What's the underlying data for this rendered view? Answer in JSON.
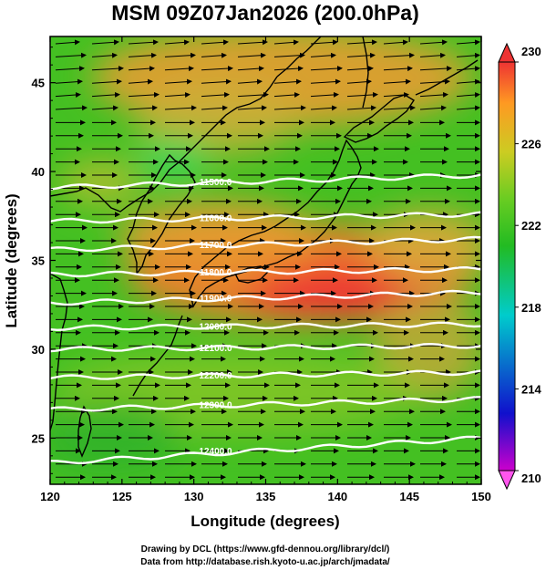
{
  "title": "MSM 09Z07Jan2026 (200.0hPa)",
  "xlabel": "Longitude (degrees)",
  "ylabel": "Latitude  (degrees)",
  "credits": [
    "Drawing by DCL (https://www.gfd-dennou.org/library/dcl/)",
    "Data from http://database.rish.kyoto-u.ac.jp/arch/jmadata/"
  ],
  "chart_data": {
    "type": "heatmap",
    "xlim": [
      120,
      150
    ],
    "ylim": [
      22.4,
      47.6
    ],
    "x_ticks": [
      "120",
      "125",
      "130",
      "135",
      "140",
      "145",
      "150"
    ],
    "x_tick_values": [
      120,
      125,
      130,
      135,
      140,
      145,
      150
    ],
    "y_ticks": [
      "25",
      "30",
      "35",
      "40",
      "45"
    ],
    "y_tick_values": [
      25,
      30,
      35,
      40,
      45
    ],
    "colorbar": {
      "range": [
        210,
        230
      ],
      "ticks": [
        "230",
        "226",
        "222",
        "218",
        "214",
        "210"
      ],
      "tick_values": [
        230,
        226,
        222,
        218,
        214,
        210
      ],
      "colors_low_to_high": [
        "#cc00cc",
        "#1010cc",
        "#00cccc",
        "#22bb22",
        "#66cc22",
        "#cccc22",
        "#ff9922",
        "#ee3333"
      ]
    },
    "contours": [
      {
        "label": "11500.0",
        "lat_at_120": 39.1,
        "lat_at_150": 39.8
      },
      {
        "label": "11600.0",
        "lat_at_120": 37.2,
        "lat_at_150": 37.6
      },
      {
        "label": "11700.0",
        "lat_at_120": 35.6,
        "lat_at_150": 36.2
      },
      {
        "label": "11800.0",
        "lat_at_120": 34.2,
        "lat_at_150": 34.5
      },
      {
        "label": "11900.0",
        "lat_at_120": 32.6,
        "lat_at_150": 33.2
      },
      {
        "label": "12000.0",
        "lat_at_120": 31.2,
        "lat_at_150": 31.4
      },
      {
        "label": "12100.0",
        "lat_at_120": 30.0,
        "lat_at_150": 30.2
      },
      {
        "label": "12200.0",
        "lat_at_120": 28.4,
        "lat_at_150": 28.7
      },
      {
        "label": "12300.0",
        "lat_at_120": 26.6,
        "lat_at_150": 27.2
      },
      {
        "label": "12400.0",
        "lat_at_120": 23.6,
        "lat_at_150": 25.0
      }
    ],
    "vectors": "wind vectors, predominantly westerly (eastward)"
  }
}
